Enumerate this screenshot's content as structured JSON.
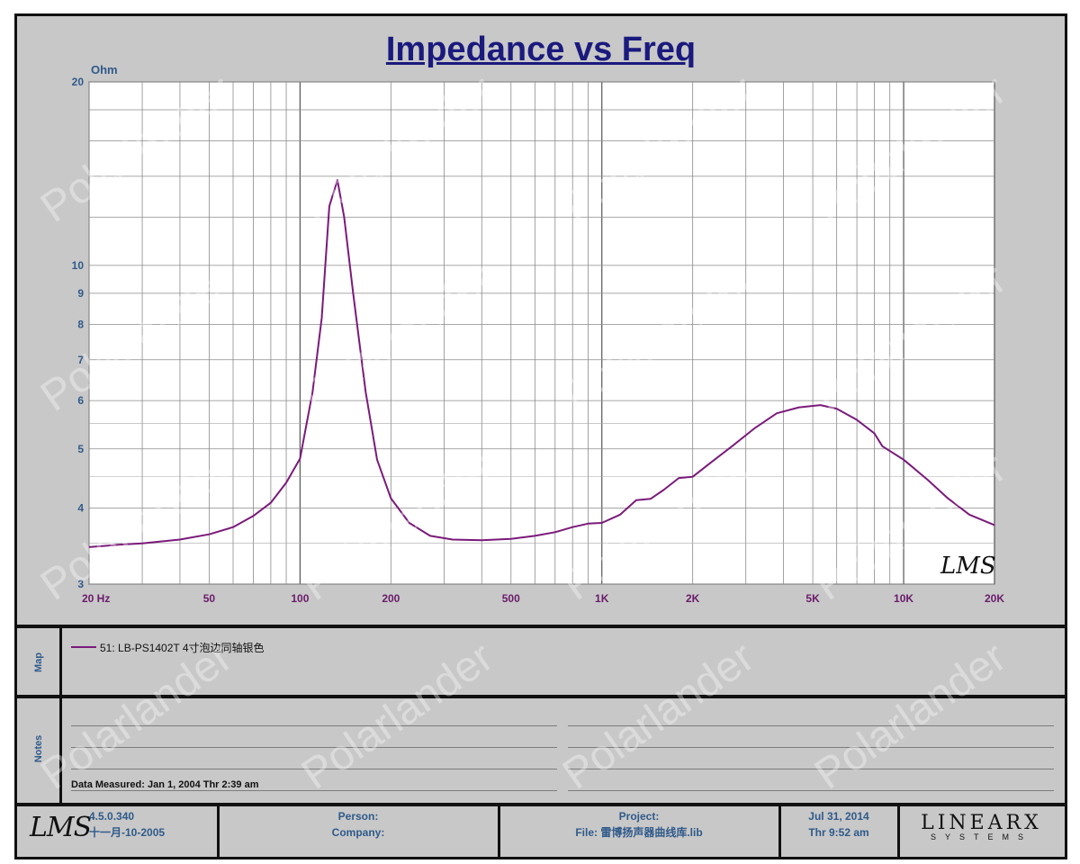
{
  "chart_data": {
    "type": "line",
    "title": "Impedance vs Freq",
    "ylabel": "Ohm",
    "x_scale": "log",
    "y_scale": "log",
    "xlim": [
      20,
      20000
    ],
    "ylim": [
      3,
      20
    ],
    "x_ticks": [
      {
        "value": 20,
        "label": "20  Hz"
      },
      {
        "value": 50,
        "label": "50"
      },
      {
        "value": 100,
        "label": "100"
      },
      {
        "value": 200,
        "label": "200"
      },
      {
        "value": 500,
        "label": "500"
      },
      {
        "value": 1000,
        "label": "1K"
      },
      {
        "value": 2000,
        "label": "2K"
      },
      {
        "value": 5000,
        "label": "5K"
      },
      {
        "value": 10000,
        "label": "10K"
      },
      {
        "value": 20000,
        "label": "20K"
      }
    ],
    "y_ticks": [
      {
        "value": 3,
        "label": "3"
      },
      {
        "value": 4,
        "label": "4"
      },
      {
        "value": 5,
        "label": "5"
      },
      {
        "value": 6,
        "label": "6"
      },
      {
        "value": 7,
        "label": "7"
      },
      {
        "value": 8,
        "label": "8"
      },
      {
        "value": 9,
        "label": "9"
      },
      {
        "value": 10,
        "label": "10"
      },
      {
        "value": 20,
        "label": "20"
      }
    ],
    "grid": true,
    "series": [
      {
        "name": "51: LB-PS1402T 4寸泡边同轴银色",
        "color": "#7a1a7a",
        "points": [
          [
            20,
            3.45
          ],
          [
            25,
            3.48
          ],
          [
            30,
            3.5
          ],
          [
            40,
            3.55
          ],
          [
            50,
            3.62
          ],
          [
            60,
            3.72
          ],
          [
            70,
            3.88
          ],
          [
            80,
            4.08
          ],
          [
            90,
            4.4
          ],
          [
            100,
            4.82
          ],
          [
            110,
            6.2
          ],
          [
            118,
            8.2
          ],
          [
            125,
            12.5
          ],
          [
            133,
            13.8
          ],
          [
            140,
            12.0
          ],
          [
            150,
            9.0
          ],
          [
            165,
            6.2
          ],
          [
            180,
            4.8
          ],
          [
            200,
            4.15
          ],
          [
            230,
            3.78
          ],
          [
            270,
            3.6
          ],
          [
            320,
            3.55
          ],
          [
            400,
            3.54
          ],
          [
            500,
            3.56
          ],
          [
            600,
            3.6
          ],
          [
            700,
            3.65
          ],
          [
            800,
            3.72
          ],
          [
            900,
            3.77
          ],
          [
            1000,
            3.78
          ],
          [
            1150,
            3.9
          ],
          [
            1300,
            4.12
          ],
          [
            1450,
            4.14
          ],
          [
            1600,
            4.28
          ],
          [
            1800,
            4.48
          ],
          [
            2000,
            4.5
          ],
          [
            2300,
            4.75
          ],
          [
            2700,
            5.05
          ],
          [
            3200,
            5.4
          ],
          [
            3800,
            5.72
          ],
          [
            4500,
            5.85
          ],
          [
            5300,
            5.9
          ],
          [
            6000,
            5.82
          ],
          [
            7000,
            5.58
          ],
          [
            8000,
            5.3
          ],
          [
            8500,
            5.05
          ],
          [
            10000,
            4.8
          ],
          [
            12000,
            4.45
          ],
          [
            14000,
            4.15
          ],
          [
            16500,
            3.9
          ],
          [
            20000,
            3.75
          ]
        ]
      }
    ]
  },
  "map": {
    "label": "Map",
    "legend_entry": "51: LB-PS1402T 4寸泡边同轴银色"
  },
  "notes": {
    "label": "Notes",
    "measured": "Data Measured: Jan  1, 2004  Thr  2:39 am"
  },
  "footer": {
    "version": "4.5.0.340",
    "version_date": "十一月-10-2005",
    "person_label": "Person:",
    "company_label": "Company:",
    "project_label": "Project:",
    "file_label": "File: 雷博扬声器曲线库.lib",
    "date": "Jul 31, 2014",
    "time": "Thr  9:52 am",
    "brand_top": "LINEARX",
    "brand_bottom": "SYSTEMS"
  },
  "watermark": "Polarlander",
  "plot_logo": "LMS"
}
